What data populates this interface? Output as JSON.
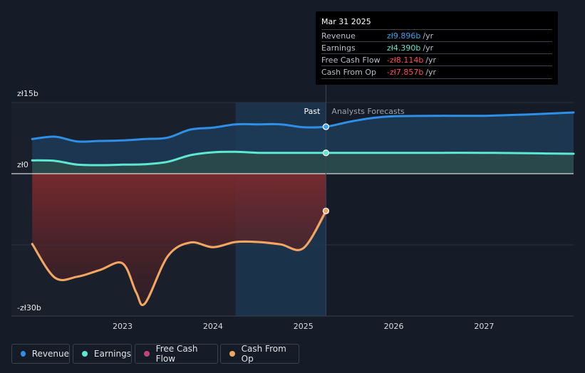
{
  "tooltip": {
    "date": "Mar 31 2025",
    "rows": [
      {
        "label": "Revenue",
        "value": "zł9.896b",
        "unit": "/yr",
        "color": "#3ba3f0"
      },
      {
        "label": "Earnings",
        "value": "zł4.390b",
        "unit": "/yr",
        "color": "#5ee8d0"
      },
      {
        "label": "Free Cash Flow",
        "value": "-zł8.114b",
        "unit": "/yr",
        "color": "#ff4d5e"
      },
      {
        "label": "Cash From Op",
        "value": "-zł7.857b",
        "unit": "/yr",
        "color": "#ff4d5e"
      }
    ]
  },
  "labels": {
    "past": "Past",
    "forecast": "Analysts Forecasts"
  },
  "legend": [
    {
      "label": "Revenue",
      "color": "#2f8fe6"
    },
    {
      "label": "Earnings",
      "color": "#5ee8d0"
    },
    {
      "label": "Free Cash Flow",
      "color": "#c2427a"
    },
    {
      "label": "Cash From Op",
      "color": "#f0a860"
    }
  ],
  "chart_data": {
    "type": "area",
    "ylim": [
      -30,
      15
    ],
    "y_tick_labels": [
      {
        "value": 15,
        "label": "zł15b"
      },
      {
        "value": 0,
        "label": "zł0"
      },
      {
        "value": -30,
        "label": "-zł30b"
      }
    ],
    "x_tick_labels": [
      {
        "value": 2023,
        "label": "2023"
      },
      {
        "value": 2024,
        "label": "2024"
      },
      {
        "value": 2025,
        "label": "2025"
      },
      {
        "value": 2026,
        "label": "2026"
      },
      {
        "value": 2027,
        "label": "2027"
      }
    ],
    "xlim": [
      2021.77,
      2027.99
    ],
    "divider_x": 2025.25,
    "highlight_start_x": 2024.25,
    "series": [
      {
        "name": "Revenue",
        "color": "#2f8fe6",
        "points": [
          [
            2022.0,
            7.3
          ],
          [
            2022.25,
            7.8
          ],
          [
            2022.5,
            6.8
          ],
          [
            2022.75,
            6.9
          ],
          [
            2023.0,
            7.0
          ],
          [
            2023.25,
            7.3
          ],
          [
            2023.5,
            7.6
          ],
          [
            2023.75,
            9.3
          ],
          [
            2024.0,
            9.7
          ],
          [
            2024.25,
            10.4
          ],
          [
            2024.5,
            10.4
          ],
          [
            2024.75,
            10.4
          ],
          [
            2025.0,
            9.8
          ],
          [
            2025.25,
            9.896
          ],
          [
            2025.5,
            10.9
          ],
          [
            2025.75,
            11.7
          ],
          [
            2026.0,
            12.1
          ],
          [
            2026.5,
            12.2
          ],
          [
            2027.0,
            12.2
          ],
          [
            2027.5,
            12.5
          ],
          [
            2027.99,
            12.9
          ]
        ]
      },
      {
        "name": "Earnings",
        "color": "#5ee8d0",
        "points": [
          [
            2022.0,
            2.8
          ],
          [
            2022.25,
            2.7
          ],
          [
            2022.5,
            1.9
          ],
          [
            2022.75,
            1.8
          ],
          [
            2023.0,
            1.9
          ],
          [
            2023.25,
            2.0
          ],
          [
            2023.5,
            2.5
          ],
          [
            2023.75,
            3.9
          ],
          [
            2024.0,
            4.5
          ],
          [
            2024.25,
            4.6
          ],
          [
            2024.5,
            4.4
          ],
          [
            2024.75,
            4.4
          ],
          [
            2025.0,
            4.4
          ],
          [
            2025.25,
            4.39
          ],
          [
            2025.5,
            4.4
          ],
          [
            2026.0,
            4.4
          ],
          [
            2026.5,
            4.4
          ],
          [
            2027.0,
            4.4
          ],
          [
            2027.5,
            4.3
          ],
          [
            2027.99,
            4.2
          ]
        ]
      },
      {
        "name": "Free Cash Flow",
        "color": "#c2427a",
        "points": [
          [
            2022.0,
            -14.8
          ],
          [
            2022.25,
            -21.9
          ],
          [
            2022.5,
            -21.7
          ],
          [
            2022.75,
            -20.3
          ],
          [
            2023.0,
            -18.9
          ],
          [
            2023.15,
            -25.0
          ],
          [
            2023.25,
            -27.3
          ],
          [
            2023.5,
            -17.4
          ],
          [
            2023.75,
            -14.5
          ],
          [
            2024.0,
            -15.5
          ],
          [
            2024.25,
            -14.4
          ],
          [
            2024.5,
            -14.4
          ],
          [
            2024.75,
            -14.9
          ],
          [
            2025.0,
            -15.7
          ],
          [
            2025.25,
            -8.114
          ]
        ]
      },
      {
        "name": "Cash From Op",
        "color": "#f0a860",
        "points": [
          [
            2022.0,
            -14.8
          ],
          [
            2022.25,
            -21.9
          ],
          [
            2022.5,
            -21.7
          ],
          [
            2022.75,
            -20.3
          ],
          [
            2023.0,
            -18.9
          ],
          [
            2023.15,
            -25.0
          ],
          [
            2023.25,
            -27.3
          ],
          [
            2023.5,
            -17.4
          ],
          [
            2023.75,
            -14.5
          ],
          [
            2024.0,
            -15.5
          ],
          [
            2024.25,
            -14.4
          ],
          [
            2024.5,
            -14.4
          ],
          [
            2024.75,
            -14.9
          ],
          [
            2025.0,
            -15.7
          ],
          [
            2025.25,
            -7.857
          ]
        ]
      }
    ]
  }
}
